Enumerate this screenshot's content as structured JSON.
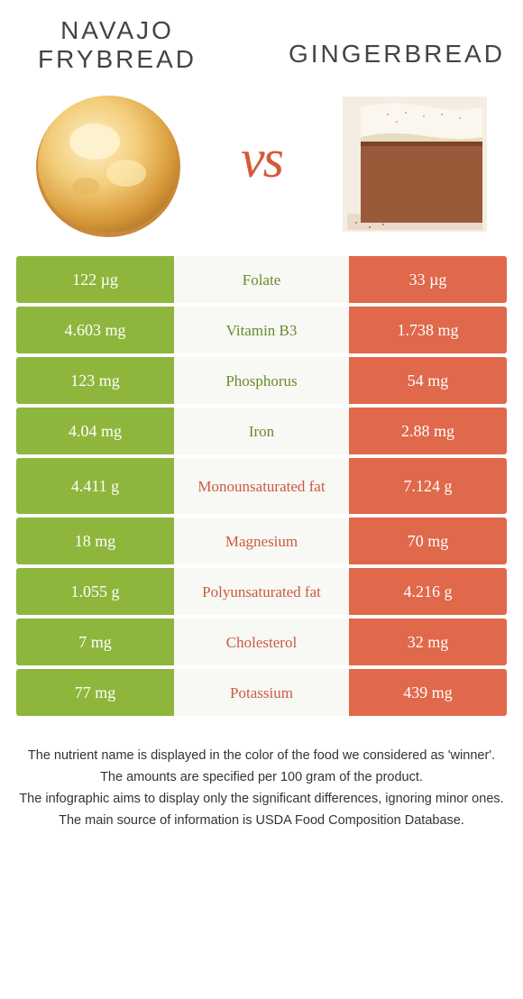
{
  "header": {
    "left_title": "Navajo frybread",
    "right_title": "Gingerbread",
    "vs_label": "vs"
  },
  "colors": {
    "green": "#8eb63c",
    "orange": "#e0684b",
    "green_text": "#6a8a2a",
    "orange_text": "#cc5a40",
    "mid_bg": "#f8f8f5",
    "page_bg": "#ffffff"
  },
  "rows": [
    {
      "left": "122 µg",
      "label": "Folate",
      "right": "33 µg",
      "winner": "left",
      "tall": false
    },
    {
      "left": "4.603 mg",
      "label": "Vitamin B3",
      "right": "1.738 mg",
      "winner": "left",
      "tall": false
    },
    {
      "left": "123 mg",
      "label": "Phosphorus",
      "right": "54 mg",
      "winner": "left",
      "tall": false
    },
    {
      "left": "4.04 mg",
      "label": "Iron",
      "right": "2.88 mg",
      "winner": "left",
      "tall": false
    },
    {
      "left": "4.411 g",
      "label": "Monounsaturated fat",
      "right": "7.124 g",
      "winner": "right",
      "tall": true
    },
    {
      "left": "18 mg",
      "label": "Magnesium",
      "right": "70 mg",
      "winner": "right",
      "tall": false
    },
    {
      "left": "1.055 g",
      "label": "Polyunsaturated fat",
      "right": "4.216 g",
      "winner": "right",
      "tall": false
    },
    {
      "left": "7 mg",
      "label": "Cholesterol",
      "right": "32 mg",
      "winner": "right",
      "tall": false
    },
    {
      "left": "77 mg",
      "label": "Potassium",
      "right": "439 mg",
      "winner": "right",
      "tall": false
    }
  ],
  "footnotes": [
    "The nutrient name is displayed in the color of the food we considered as 'winner'.",
    "The amounts are specified per 100 gram of the product.",
    "The infographic aims to display only the significant differences, ignoring minor ones.",
    "The main source of information is USDA Food Composition Database."
  ]
}
